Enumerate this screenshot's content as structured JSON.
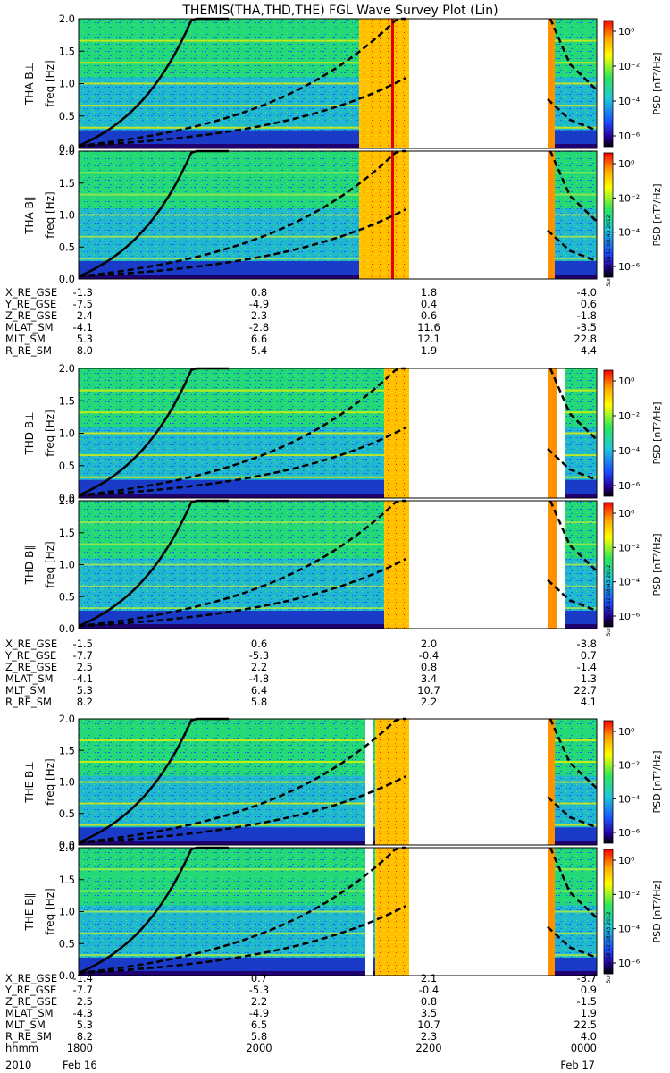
{
  "chart_data": {
    "type": "heatmap",
    "title": "THEMIS(THA,THD,THE) FGL Wave Survey Plot (Lin)",
    "y_range": [
      0,
      2.0
    ],
    "y_ticks": [
      "0.0",
      "0.5",
      "1.0",
      "1.5",
      "2.0"
    ],
    "colorbar": {
      "label": "PSD [nT²/Hz]",
      "ticks": [
        "10⁰",
        "10⁻²",
        "10⁻⁴",
        "10⁻⁶"
      ],
      "palette": [
        "#ff0000",
        "#ffa500",
        "#ffff00",
        "#2ee65a",
        "#20c8d8",
        "#1a50ff",
        "#2a00a0",
        "#000000"
      ],
      "timestamp": "Sun Sep 18 12:08:43 2012"
    },
    "panels": [
      {
        "label": "THA B⊥",
        "freq_label": "freq [Hz]"
      },
      {
        "label": "THA B∥",
        "freq_label": "freq [Hz]"
      },
      {
        "label": "THD B⊥",
        "freq_label": "freq [Hz]"
      },
      {
        "label": "THD B∥",
        "freq_label": "freq [Hz]"
      },
      {
        "label": "THE B⊥",
        "freq_label": "freq [Hz]"
      },
      {
        "label": "THE B∥",
        "freq_label": "freq [Hz]"
      }
    ],
    "ephemeris": [
      {
        "probe": "THA",
        "rows": [
          {
            "name": "X_RE_GSE",
            "values": [
              "-1.3",
              "0.8",
              "1.8",
              "-4.0"
            ]
          },
          {
            "name": "Y_RE_GSE",
            "values": [
              "-7.5",
              "-4.9",
              "0.4",
              "0.6"
            ]
          },
          {
            "name": "Z_RE_GSE",
            "values": [
              "2.4",
              "2.3",
              "0.6",
              "-1.8"
            ]
          },
          {
            "name": "MLAT_SM",
            "values": [
              "-4.1",
              "-2.8",
              "11.6",
              "-3.5"
            ]
          },
          {
            "name": "MLT_SM",
            "values": [
              "5.3",
              "6.6",
              "12.1",
              "22.8"
            ]
          },
          {
            "name": "R_RE_SM",
            "values": [
              "8.0",
              "5.4",
              "1.9",
              "4.4"
            ]
          }
        ]
      },
      {
        "probe": "THD",
        "rows": [
          {
            "name": "X_RE_GSE",
            "values": [
              "-1.5",
              "0.6",
              "2.0",
              "-3.8"
            ]
          },
          {
            "name": "Y_RE_GSE",
            "values": [
              "-7.7",
              "-5.3",
              "-0.4",
              "0.7"
            ]
          },
          {
            "name": "Z_RE_GSE",
            "values": [
              "2.5",
              "2.2",
              "0.8",
              "-1.4"
            ]
          },
          {
            "name": "MLAT_SM",
            "values": [
              "-4.1",
              "-4.8",
              "3.4",
              "1.3"
            ]
          },
          {
            "name": "MLT_SM",
            "values": [
              "5.3",
              "6.4",
              "10.7",
              "22.7"
            ]
          },
          {
            "name": "R_RE_SM",
            "values": [
              "8.2",
              "5.8",
              "2.2",
              "4.1"
            ]
          }
        ]
      },
      {
        "probe": "THE",
        "rows": [
          {
            "name": "X_RE_GSE",
            "values": [
              "-1.4",
              "0.7",
              "2.1",
              "-3.7"
            ]
          },
          {
            "name": "Y_RE_GSE",
            "values": [
              "-7.7",
              "-5.3",
              "-0.4",
              "0.9"
            ]
          },
          {
            "name": "Z_RE_GSE",
            "values": [
              "2.5",
              "2.2",
              "0.8",
              "-1.5"
            ]
          },
          {
            "name": "MLAT_SM",
            "values": [
              "-4.3",
              "-4.9",
              "3.5",
              "1.9"
            ]
          },
          {
            "name": "MLT_SM",
            "values": [
              "5.3",
              "6.5",
              "10.7",
              "22.5"
            ]
          },
          {
            "name": "R_RE_SM",
            "values": [
              "8.2",
              "5.8",
              "2.3",
              "4.0"
            ]
          },
          {
            "name": "hhmm",
            "values": [
              "1800",
              "2000",
              "2200",
              "0000"
            ]
          }
        ]
      }
    ],
    "date_row": {
      "year": "2010",
      "start": "Feb 16",
      "end": "Feb 17"
    }
  }
}
